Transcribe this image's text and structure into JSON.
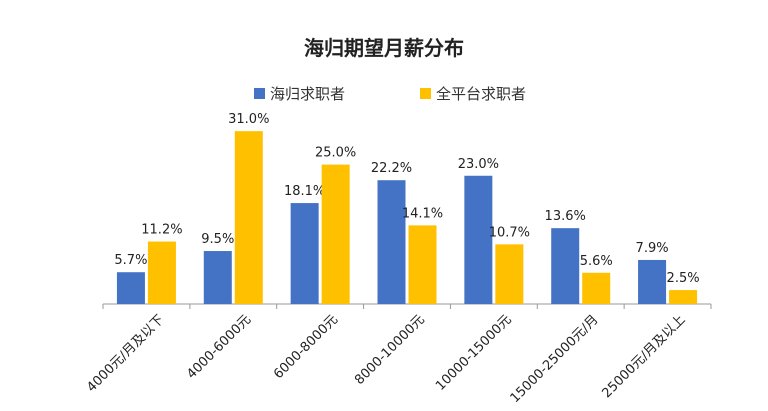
{
  "chart_data": {
    "type": "bar",
    "title": "海归期望月薪分布",
    "xlabel": "",
    "ylabel": "",
    "ylim": [
      0,
      33
    ],
    "grid": false,
    "legend": "top",
    "categories": [
      "4000元/月及以下",
      "4000-6000元",
      "6000-8000元",
      "8000-10000元",
      "10000-15000元",
      "15000-25000元/月",
      "25000元/月及以上"
    ],
    "series": [
      {
        "name": "海归求职者",
        "color": "#4472C4",
        "values": [
          5.7,
          9.5,
          18.1,
          22.2,
          23.0,
          13.6,
          7.9
        ],
        "labels": [
          "5.7%",
          "9.5%",
          "18.1%",
          "22.2%",
          "23.0%",
          "13.6%",
          "7.9%"
        ]
      },
      {
        "name": "全平台求职者",
        "color": "#FFC000",
        "values": [
          11.2,
          31.0,
          25.0,
          14.1,
          10.7,
          5.6,
          2.5
        ],
        "labels": [
          "11.2%",
          "31.0%",
          "25.0%",
          "14.1%",
          "10.7%",
          "5.6%",
          "2.5%"
        ]
      }
    ]
  }
}
